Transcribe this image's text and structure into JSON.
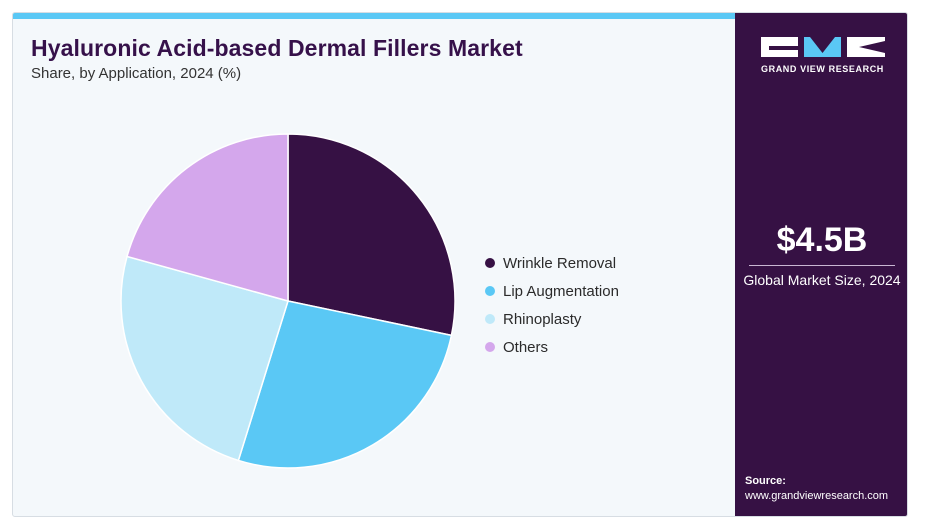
{
  "header": {
    "title": "Hyaluronic Acid-based Dermal Fillers Market",
    "subtitle": "Share, by Application, 2024 (%)"
  },
  "chart_data": {
    "type": "pie",
    "title": "Hyaluronic Acid-based Dermal Fillers Market",
    "subtitle": "Share, by Application, 2024 (%)",
    "categories": [
      "Wrinkle Removal",
      "Lip Augmentation",
      "Rhinoplasty",
      "Others"
    ],
    "values": [
      28.3,
      26.5,
      24.5,
      20.7
    ],
    "colors": [
      "#361144",
      "#5ac8f5",
      "#bfe9f9",
      "#d4a7ec"
    ],
    "legend": "right",
    "start_angle": "12 o'clock",
    "direction": "clockwise"
  },
  "sidebar": {
    "brand": "GRAND VIEW RESEARCH",
    "market_value": "$4.5B",
    "market_label": "Global Market Size, 2024",
    "source_label": "Source:",
    "source_url": "www.grandviewresearch.com"
  },
  "colors": {
    "accent_bar": "#5ac8f5",
    "panel": "#361144",
    "background": "#f4f8fb"
  }
}
